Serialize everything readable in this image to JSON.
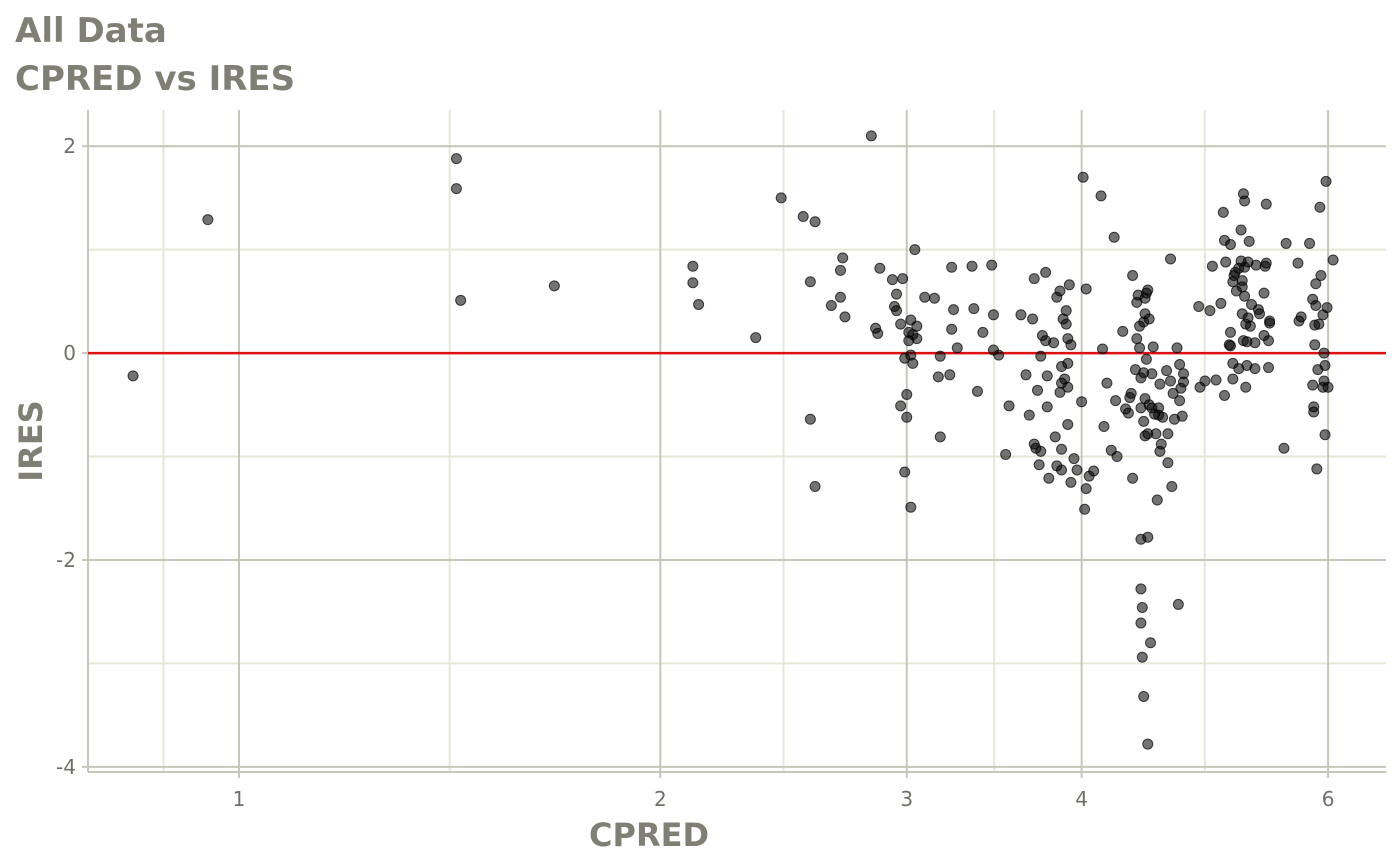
{
  "title": "All Data",
  "subtitle": "CPRED vs IRES",
  "chart_data": {
    "type": "scatter",
    "title": "All Data",
    "subtitle": "CPRED vs IRES",
    "xlabel": "CPRED",
    "ylabel": "IRES",
    "x_scale": "log",
    "xlim": [
      0.78,
      6.6
    ],
    "ylim": [
      -4.05,
      2.35
    ],
    "x_ticks": [
      1,
      2,
      3,
      4,
      6
    ],
    "x_tick_labels": [
      "1",
      "2",
      "3",
      "4",
      "6"
    ],
    "y_ticks": [
      2,
      0,
      -2,
      -4
    ],
    "y_tick_labels": [
      "2",
      "0",
      "-2",
      "-4"
    ],
    "grid": true,
    "reference_line": {
      "y": 0,
      "color": "#dd1111"
    },
    "point_color": "#000000",
    "point_alpha": 0.55,
    "points": [
      [
        0.84,
        -0.22
      ],
      [
        0.95,
        1.29
      ],
      [
        1.43,
        1.88
      ],
      [
        1.43,
        1.59
      ],
      [
        1.44,
        0.51
      ],
      [
        1.68,
        0.65
      ],
      [
        2.11,
        0.84
      ],
      [
        2.11,
        0.68
      ],
      [
        2.13,
        0.47
      ],
      [
        2.34,
        0.15
      ],
      [
        2.44,
        1.5
      ],
      [
        2.53,
        1.32
      ],
      [
        2.56,
        0.69
      ],
      [
        2.56,
        -0.64
      ],
      [
        2.58,
        1.27
      ],
      [
        2.58,
        -1.29
      ],
      [
        2.65,
        0.46
      ],
      [
        2.69,
        0.8
      ],
      [
        2.69,
        0.54
      ],
      [
        2.7,
        0.92
      ],
      [
        2.71,
        0.35
      ],
      [
        2.83,
        2.1
      ],
      [
        2.85,
        0.24
      ],
      [
        2.86,
        0.19
      ],
      [
        2.87,
        0.82
      ],
      [
        2.93,
        0.71
      ],
      [
        2.94,
        0.45
      ],
      [
        2.95,
        0.57
      ],
      [
        2.95,
        0.41
      ],
      [
        2.97,
        0.28
      ],
      [
        2.97,
        -0.51
      ],
      [
        2.98,
        0.72
      ],
      [
        2.99,
        -0.05
      ],
      [
        2.99,
        -1.15
      ],
      [
        3.0,
        -0.4
      ],
      [
        3.0,
        -0.62
      ],
      [
        3.01,
        0.2
      ],
      [
        3.01,
        0.12
      ],
      [
        3.02,
        -0.02
      ],
      [
        3.02,
        0.32
      ],
      [
        3.02,
        -1.49
      ],
      [
        3.03,
        0.18
      ],
      [
        3.03,
        -0.1
      ],
      [
        3.04,
        1.0
      ],
      [
        3.05,
        0.26
      ],
      [
        3.05,
        0.14
      ],
      [
        3.09,
        0.54
      ],
      [
        3.14,
        0.53
      ],
      [
        3.16,
        -0.23
      ],
      [
        3.17,
        -0.03
      ],
      [
        3.17,
        -0.81
      ],
      [
        3.22,
        -0.21
      ],
      [
        3.23,
        0.83
      ],
      [
        3.23,
        0.23
      ],
      [
        3.24,
        0.42
      ],
      [
        3.26,
        0.05
      ],
      [
        3.34,
        0.84
      ],
      [
        3.35,
        0.43
      ],
      [
        3.37,
        -0.37
      ],
      [
        3.4,
        0.2
      ],
      [
        3.45,
        0.85
      ],
      [
        3.46,
        0.37
      ],
      [
        3.46,
        0.03
      ],
      [
        3.49,
        -0.02
      ],
      [
        3.53,
        -0.98
      ],
      [
        3.55,
        -0.51
      ],
      [
        3.62,
        0.37
      ],
      [
        3.65,
        -0.21
      ],
      [
        3.67,
        -0.6
      ],
      [
        3.69,
        0.33
      ],
      [
        3.7,
        0.72
      ],
      [
        3.7,
        -0.88
      ],
      [
        3.71,
        -0.92
      ],
      [
        3.72,
        -0.36
      ],
      [
        3.73,
        -1.08
      ],
      [
        3.74,
        -0.95
      ],
      [
        3.74,
        -0.03
      ],
      [
        3.75,
        0.17
      ],
      [
        3.77,
        0.78
      ],
      [
        3.77,
        0.12
      ],
      [
        3.78,
        -0.52
      ],
      [
        3.78,
        -0.22
      ],
      [
        3.79,
        -1.21
      ],
      [
        3.82,
        0.1
      ],
      [
        3.83,
        -0.81
      ],
      [
        3.84,
        0.54
      ],
      [
        3.84,
        -1.09
      ],
      [
        3.86,
        0.6
      ],
      [
        3.86,
        -0.38
      ],
      [
        3.87,
        -0.13
      ],
      [
        3.87,
        -0.29
      ],
      [
        3.87,
        -0.93
      ],
      [
        3.87,
        -1.13
      ],
      [
        3.88,
        0.33
      ],
      [
        3.89,
        -0.25
      ],
      [
        3.9,
        0.41
      ],
      [
        3.9,
        0.28
      ],
      [
        3.91,
        -0.69
      ],
      [
        3.91,
        -0.33
      ],
      [
        3.91,
        -0.1
      ],
      [
        3.91,
        0.14
      ],
      [
        3.92,
        0.66
      ],
      [
        3.93,
        0.08
      ],
      [
        3.93,
        -1.25
      ],
      [
        3.95,
        -1.02
      ],
      [
        3.97,
        -1.13
      ],
      [
        4.0,
        -0.47
      ],
      [
        4.01,
        1.7
      ],
      [
        4.02,
        -1.51
      ],
      [
        4.03,
        -1.31
      ],
      [
        4.03,
        0.62
      ],
      [
        4.05,
        -1.19
      ],
      [
        4.08,
        -1.14
      ],
      [
        4.13,
        1.52
      ],
      [
        4.14,
        0.04
      ],
      [
        4.15,
        -0.71
      ],
      [
        4.17,
        -0.29
      ],
      [
        4.2,
        -0.94
      ],
      [
        4.22,
        1.12
      ],
      [
        4.23,
        -0.46
      ],
      [
        4.24,
        -1.0
      ],
      [
        4.28,
        0.21
      ],
      [
        4.3,
        -0.54
      ],
      [
        4.32,
        -0.58
      ],
      [
        4.33,
        -0.43
      ],
      [
        4.34,
        -0.39
      ],
      [
        4.35,
        0.75
      ],
      [
        4.35,
        -1.21
      ],
      [
        4.37,
        -0.16
      ],
      [
        4.38,
        0.14
      ],
      [
        4.38,
        0.49
      ],
      [
        4.39,
        0.56
      ],
      [
        4.4,
        0.26
      ],
      [
        4.4,
        0.05
      ],
      [
        4.41,
        -0.24
      ],
      [
        4.41,
        -0.53
      ],
      [
        4.41,
        -1.8
      ],
      [
        4.41,
        -2.28
      ],
      [
        4.41,
        -2.61
      ],
      [
        4.42,
        -2.94
      ],
      [
        4.42,
        -2.46
      ],
      [
        4.43,
        -3.32
      ],
      [
        4.43,
        0.3
      ],
      [
        4.43,
        -0.66
      ],
      [
        4.43,
        -0.19
      ],
      [
        4.44,
        0.53
      ],
      [
        4.44,
        0.38
      ],
      [
        4.44,
        -0.44
      ],
      [
        4.44,
        -0.8
      ],
      [
        4.45,
        0.58
      ],
      [
        4.45,
        -0.06
      ],
      [
        4.46,
        -3.78
      ],
      [
        4.46,
        -0.78
      ],
      [
        4.46,
        0.61
      ],
      [
        4.46,
        -1.78
      ],
      [
        4.47,
        0.33
      ],
      [
        4.47,
        -0.5
      ],
      [
        4.48,
        -2.8
      ],
      [
        4.49,
        -0.2
      ],
      [
        4.49,
        -0.53
      ],
      [
        4.5,
        0.06
      ],
      [
        4.51,
        -0.59
      ],
      [
        4.52,
        -0.78
      ],
      [
        4.53,
        -1.42
      ],
      [
        4.54,
        -0.6
      ],
      [
        4.54,
        -0.53
      ],
      [
        4.55,
        -0.95
      ],
      [
        4.55,
        -0.3
      ],
      [
        4.56,
        -0.88
      ],
      [
        4.57,
        -0.62
      ],
      [
        4.6,
        -0.17
      ],
      [
        4.61,
        -0.78
      ],
      [
        4.61,
        -1.06
      ],
      [
        4.63,
        0.91
      ],
      [
        4.63,
        -0.27
      ],
      [
        4.64,
        -1.29
      ],
      [
        4.65,
        -0.39
      ],
      [
        4.66,
        -0.64
      ],
      [
        4.68,
        0.05
      ],
      [
        4.69,
        -2.43
      ],
      [
        4.7,
        -0.46
      ],
      [
        4.7,
        -0.11
      ],
      [
        4.71,
        -0.34
      ],
      [
        4.72,
        -0.61
      ],
      [
        4.73,
        -0.2
      ],
      [
        4.73,
        -0.28
      ],
      [
        4.85,
        0.45
      ],
      [
        4.86,
        -0.33
      ],
      [
        4.9,
        -0.27
      ],
      [
        4.94,
        0.41
      ],
      [
        4.96,
        0.84
      ],
      [
        4.99,
        -0.26
      ],
      [
        5.03,
        0.48
      ],
      [
        5.05,
        1.36
      ],
      [
        5.06,
        1.09
      ],
      [
        5.06,
        -0.41
      ],
      [
        5.07,
        0.88
      ],
      [
        5.1,
        0.08
      ],
      [
        5.11,
        1.05
      ],
      [
        5.11,
        0.07
      ],
      [
        5.11,
        0.2
      ],
      [
        5.13,
        -0.1
      ],
      [
        5.13,
        0.69
      ],
      [
        5.13,
        -0.25
      ],
      [
        5.14,
        0.75
      ],
      [
        5.15,
        0.78
      ],
      [
        5.16,
        0.6
      ],
      [
        5.18,
        0.82
      ],
      [
        5.18,
        -0.15
      ],
      [
        5.2,
        0.89
      ],
      [
        5.2,
        1.19
      ],
      [
        5.21,
        0.64
      ],
      [
        5.21,
        0.7
      ],
      [
        5.21,
        0.38
      ],
      [
        5.22,
        0.12
      ],
      [
        5.22,
        1.54
      ],
      [
        5.23,
        0.55
      ],
      [
        5.23,
        0.83
      ],
      [
        5.23,
        1.47
      ],
      [
        5.24,
        -0.33
      ],
      [
        5.24,
        0.28
      ],
      [
        5.25,
        -0.12
      ],
      [
        5.25,
        0.11
      ],
      [
        5.26,
        0.34
      ],
      [
        5.26,
        0.88
      ],
      [
        5.27,
        1.08
      ],
      [
        5.28,
        0.26
      ],
      [
        5.29,
        0.47
      ],
      [
        5.32,
        0.1
      ],
      [
        5.32,
        -0.15
      ],
      [
        5.33,
        0.85
      ],
      [
        5.35,
        0.42
      ],
      [
        5.36,
        0.38
      ],
      [
        5.4,
        0.17
      ],
      [
        5.4,
        0.58
      ],
      [
        5.41,
        0.84
      ],
      [
        5.42,
        0.87
      ],
      [
        5.42,
        1.44
      ],
      [
        5.44,
        0.12
      ],
      [
        5.44,
        -0.14
      ],
      [
        5.45,
        0.31
      ],
      [
        5.45,
        0.29
      ],
      [
        5.58,
        -0.92
      ],
      [
        5.6,
        1.06
      ],
      [
        5.71,
        0.87
      ],
      [
        5.72,
        0.31
      ],
      [
        5.74,
        0.35
      ],
      [
        5.82,
        1.06
      ],
      [
        5.85,
        -0.31
      ],
      [
        5.85,
        0.52
      ],
      [
        5.86,
        -0.52
      ],
      [
        5.86,
        -0.57
      ],
      [
        5.87,
        0.27
      ],
      [
        5.87,
        0.08
      ],
      [
        5.88,
        0.46
      ],
      [
        5.88,
        0.67
      ],
      [
        5.89,
        -1.12
      ],
      [
        5.9,
        -0.16
      ],
      [
        5.91,
        0.28
      ],
      [
        5.92,
        1.41
      ],
      [
        5.93,
        0.75
      ],
      [
        5.95,
        0.37
      ],
      [
        5.95,
        -0.33
      ],
      [
        5.96,
        0.0
      ],
      [
        5.96,
        -0.27
      ],
      [
        5.97,
        -0.79
      ],
      [
        5.97,
        -0.12
      ],
      [
        5.98,
        1.66
      ],
      [
        5.99,
        0.44
      ],
      [
        6.0,
        -0.33
      ],
      [
        6.05,
        0.9
      ]
    ]
  }
}
